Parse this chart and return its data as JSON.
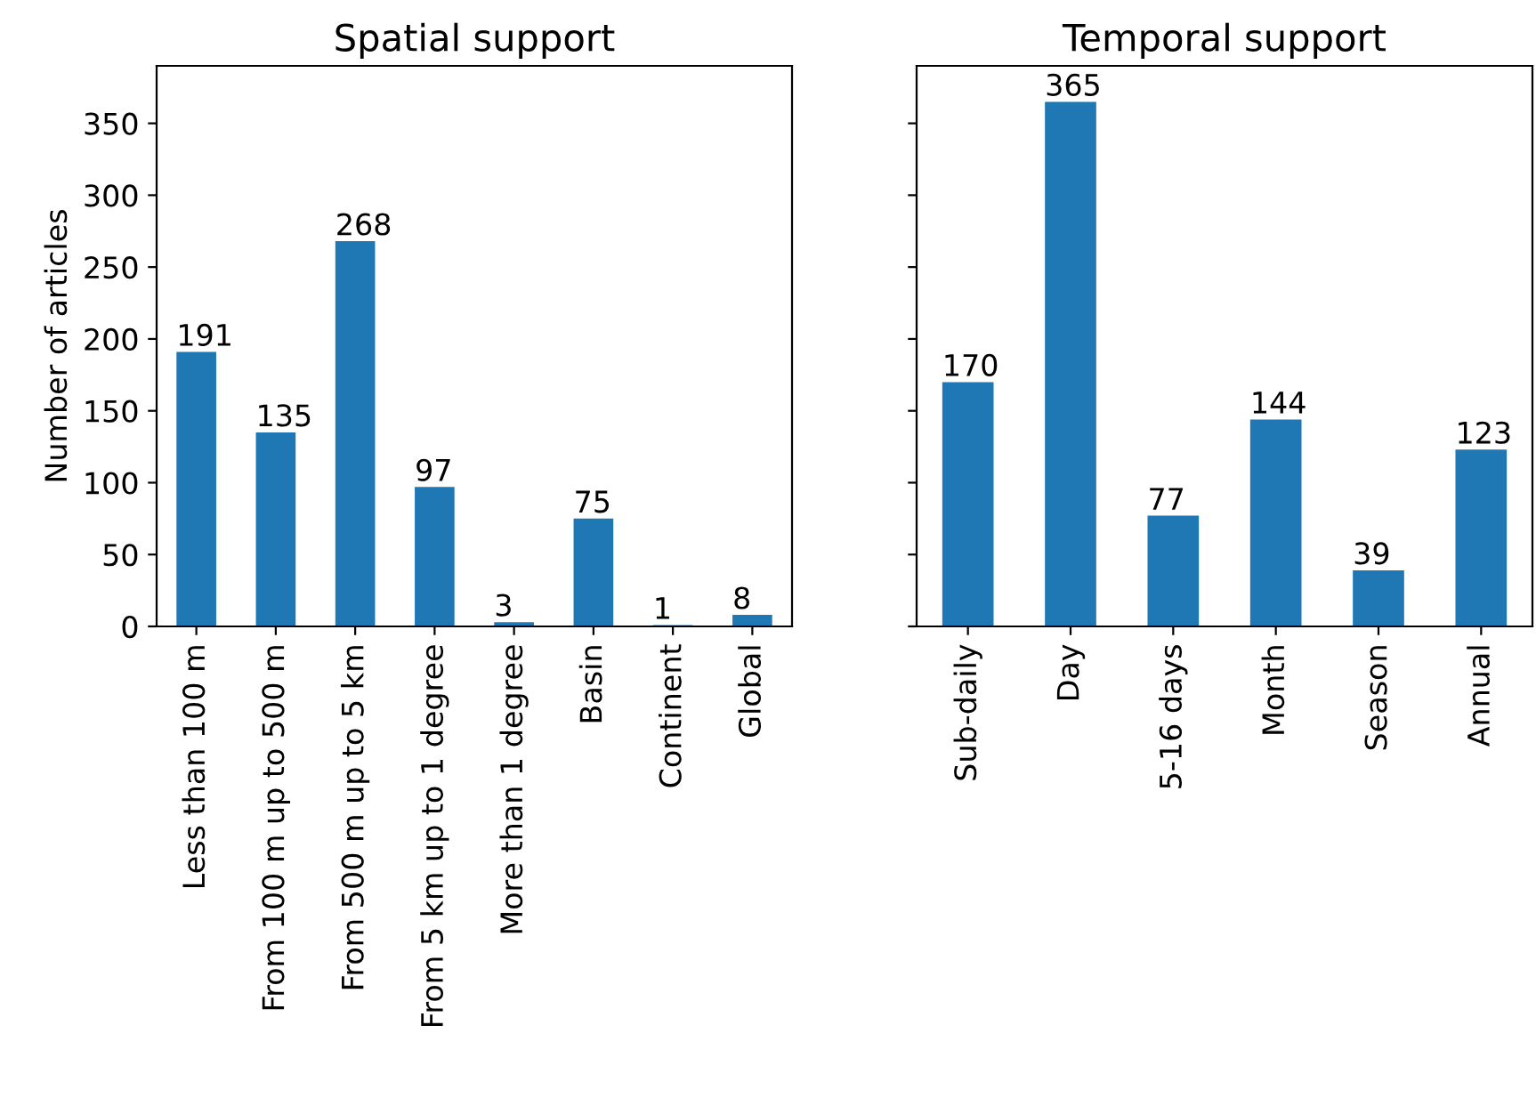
{
  "chart_data": [
    {
      "type": "bar",
      "title": "Spatial support",
      "ylabel": "Number of articles",
      "categories": [
        "Less than 100 m",
        "From 100 m up to 500 m",
        "From 500 m up to 5 km",
        "From 5 km up to 1 degree",
        "More than 1 degree",
        "Basin",
        "Continent",
        "Global"
      ],
      "values": [
        191,
        135,
        268,
        97,
        3,
        75,
        1,
        8
      ],
      "color": "#1f77b4",
      "ylim": [
        0,
        390
      ],
      "yticks": [
        0,
        50,
        100,
        150,
        200,
        250,
        300,
        350
      ],
      "data_labels": true,
      "grid": false,
      "legend": false
    },
    {
      "type": "bar",
      "title": "Temporal support",
      "categories": [
        "Sub-daily",
        "Day",
        "5-16 days",
        "Month",
        "Season",
        "Annual"
      ],
      "values": [
        170,
        365,
        77,
        144,
        39,
        123
      ],
      "color": "#1f77b4",
      "ylim": [
        0,
        390
      ],
      "yticks": [
        0,
        50,
        100,
        150,
        200,
        250,
        300,
        350
      ],
      "tick_labels": "x",
      "data_labels": true,
      "grid": false,
      "legend": false
    }
  ]
}
